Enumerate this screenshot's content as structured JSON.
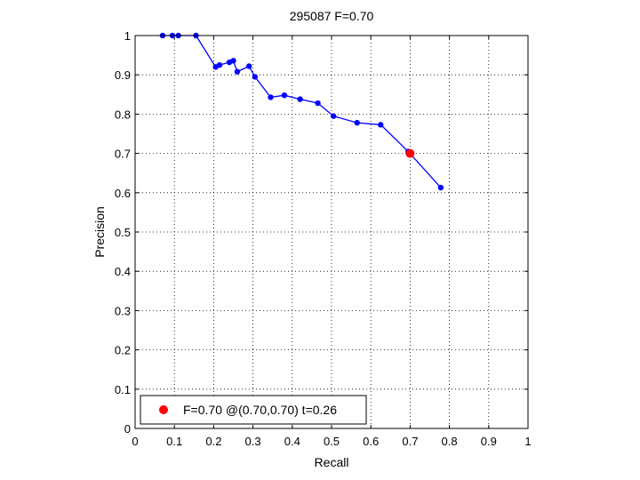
{
  "chart_data": {
    "type": "line",
    "title": "295087 F=0.70",
    "xlabel": "Recall",
    "ylabel": "Precision",
    "xlim": [
      0,
      1
    ],
    "ylim": [
      0,
      1
    ],
    "xticks": [
      "0",
      "0.1",
      "0.2",
      "0.3",
      "0.4",
      "0.5",
      "0.6",
      "0.7",
      "0.8",
      "0.9",
      "1"
    ],
    "yticks": [
      "0",
      "0.1",
      "0.2",
      "0.3",
      "0.4",
      "0.5",
      "0.6",
      "0.7",
      "0.8",
      "0.9",
      "1"
    ],
    "grid": true,
    "legend_position": "bottom-left",
    "series": [
      {
        "color": "#0000ff",
        "x": [
          0.07,
          0.095,
          0.11,
          0.155,
          0.205,
          0.215,
          0.24,
          0.25,
          0.26,
          0.29,
          0.305,
          0.345,
          0.38,
          0.42,
          0.465,
          0.505,
          0.565,
          0.625,
          0.695,
          0.778
        ],
        "y": [
          1.0,
          1.0,
          1.0,
          1.0,
          0.92,
          0.925,
          0.932,
          0.936,
          0.908,
          0.922,
          0.895,
          0.843,
          0.848,
          0.838,
          0.828,
          0.795,
          0.778,
          0.773,
          0.705,
          0.613
        ]
      }
    ],
    "highlight": {
      "color": "#ff0000",
      "x": 0.7,
      "y": 0.7,
      "label": "F=0.70 @(0.70,0.70) t=0.26"
    }
  }
}
